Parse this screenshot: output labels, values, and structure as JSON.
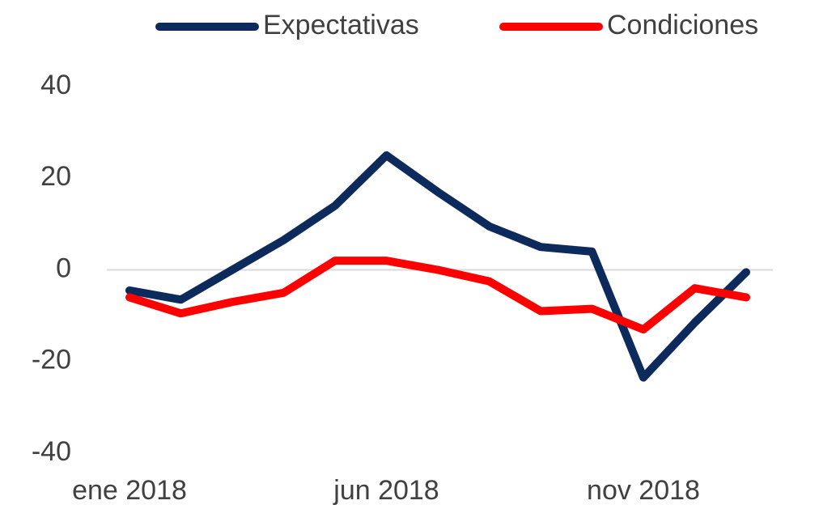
{
  "chart_data": {
    "type": "line",
    "categories": [
      "ene 2018",
      null,
      null,
      null,
      null,
      "jun 2018",
      null,
      null,
      null,
      null,
      "nov 2018",
      null,
      null
    ],
    "series": [
      {
        "name": "Expectativas",
        "color": "#0d2a5c",
        "values": [
          -4.5,
          -6.5,
          0,
          6.5,
          14,
          25,
          17,
          9.5,
          5,
          4,
          -23.5,
          -11.5,
          -0.5
        ]
      },
      {
        "name": "Condiciones",
        "color": "#ff0000",
        "values": [
          -6,
          -9.5,
          -7,
          -5,
          2,
          2,
          0,
          -2.5,
          -9,
          -8.5,
          -13,
          -4,
          -6
        ]
      }
    ],
    "ylim": [
      -40,
      40
    ],
    "yticks": [
      -40,
      -20,
      0,
      20,
      40
    ],
    "zero_line": true,
    "legend": "top"
  }
}
